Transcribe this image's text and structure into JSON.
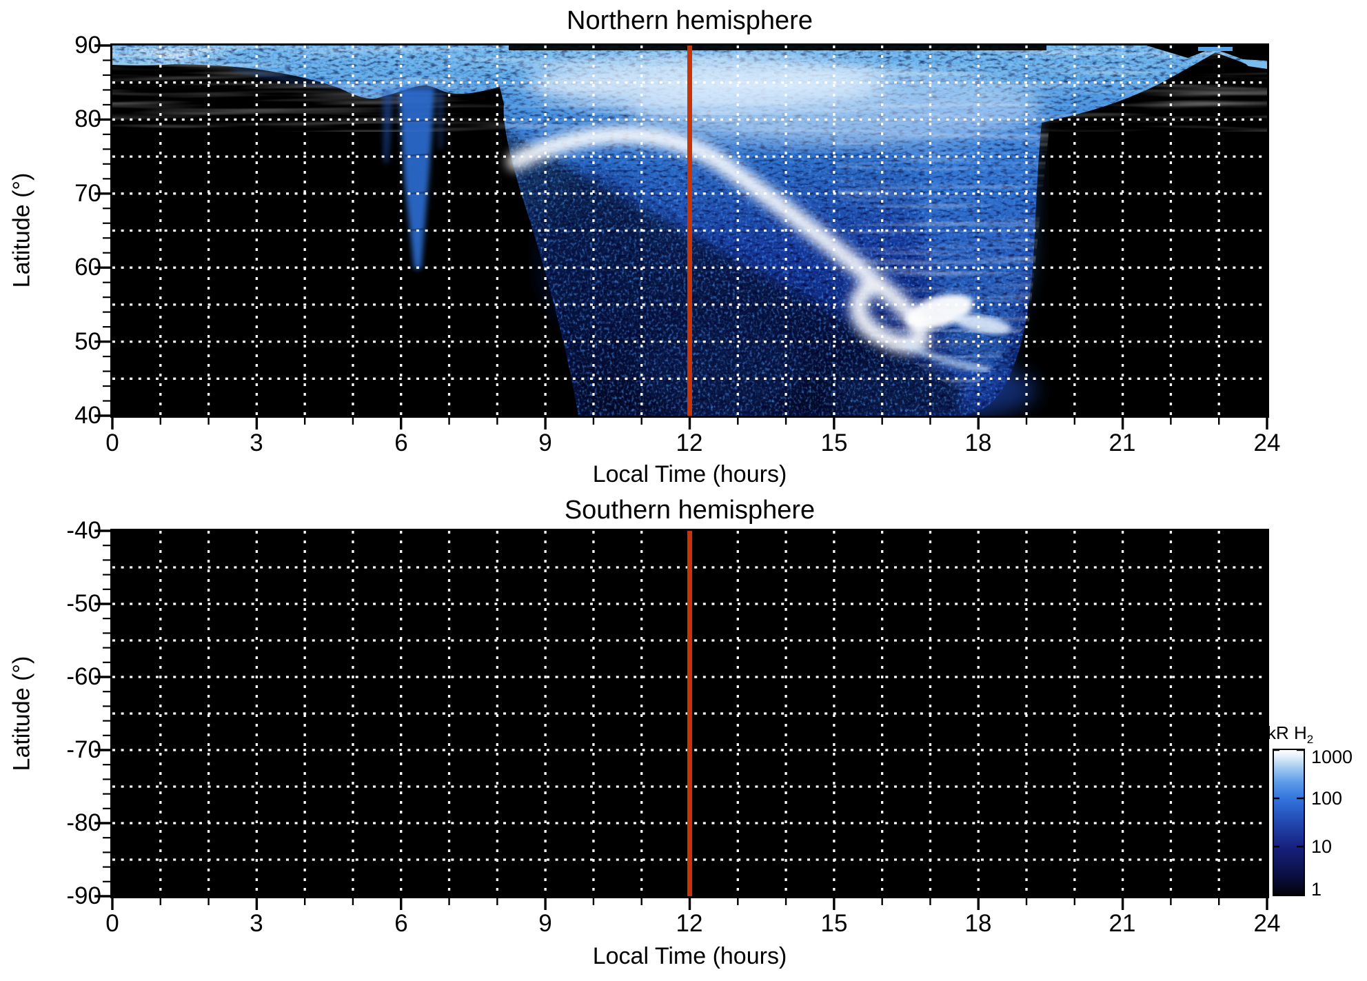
{
  "page": {
    "background": "#ffffff"
  },
  "colors": {
    "plot_background": "#000000",
    "frame": "#000000",
    "grid": "#ffffff",
    "meridian_line": "#c63508",
    "colormap_stops": [
      "#030309",
      "#17217e",
      "#3272dd",
      "#a4ccf2",
      "#ffffff"
    ]
  },
  "meridian": {
    "hour": 12
  },
  "north": {
    "title": "Northern hemisphere",
    "xlabel": "Local Time (hours)",
    "ylabel": "Latitude (°)",
    "x_ticks": [
      "0",
      "3",
      "6",
      "9",
      "12",
      "15",
      "18",
      "21",
      "24"
    ],
    "y_ticks": [
      "90",
      "80",
      "70",
      "60",
      "50",
      "40"
    ]
  },
  "south": {
    "title": "Southern hemisphere",
    "xlabel": "Local Time (hours)",
    "ylabel": "Latitude (°)",
    "x_ticks": [
      "0",
      "3",
      "6",
      "9",
      "12",
      "15",
      "18",
      "21",
      "24"
    ],
    "y_ticks": [
      "-40",
      "-50",
      "-60",
      "-70",
      "-80",
      "-90"
    ]
  },
  "colorbar": {
    "label_main": "kR H",
    "label_sub": "2",
    "tick_labels": [
      "1000",
      "100",
      "10",
      "1"
    ]
  },
  "chart_data": [
    {
      "type": "heatmap",
      "title": "Northern hemisphere",
      "xlabel": "Local Time (hours)",
      "ylabel": "Latitude (°)",
      "xlim": [
        0,
        24
      ],
      "ylim": [
        40,
        90
      ],
      "xticks": [
        0,
        3,
        6,
        9,
        12,
        15,
        18,
        21,
        24
      ],
      "yticks": [
        40,
        50,
        60,
        70,
        80,
        90
      ],
      "grid": "white dotted gridlines every 1 hour and every 5 degrees",
      "colorbar": {
        "label": "kR H2",
        "scale": "log",
        "range": [
          1,
          1000
        ],
        "ticks": [
          1,
          10,
          100,
          1000
        ],
        "colormap": "black -> dark blue -> blue -> light blue -> white"
      },
      "annotations": [
        {
          "type": "vertical-line",
          "x": 12,
          "color": "#c63508",
          "note": "noon meridian line spanning full latitude range"
        }
      ],
      "features": [
        {
          "name": "polar-cap emission band",
          "hours": [
            0,
            24
          ],
          "lat": [
            85,
            90
          ],
          "intensity_kR": [
            100,
            1000
          ],
          "note": "bright streaky band along top, thin 0-2 h and 20-24 h, brightest 10-15 h"
        },
        {
          "name": "dayside emission fan",
          "hours": [
            6.5,
            19.5
          ],
          "lat": [
            50,
            90
          ],
          "intensity_kR": [
            5,
            300
          ],
          "note": "broad blue fan descending from polar band, sharp right edge near 19 h"
        },
        {
          "name": "bright auroral arc / spiral",
          "path_hour_lat": [
            [
              11,
              83
            ],
            [
              13,
              76
            ],
            [
              15,
              66
            ],
            [
              16.3,
              58
            ],
            [
              15.8,
              55.5
            ]
          ],
          "intensity_kR": 1000,
          "note": "white arc sweeping down from noon sector, hooking into a spiral"
        },
        {
          "name": "bright spot with tail",
          "hour": 17.2,
          "lat": 54,
          "intensity_kR": 1000,
          "note": "white blob near 17 h, 54 deg with comet-like tail toward 18 h, 50 deg"
        },
        {
          "name": "dawn streak",
          "hour": 6.5,
          "lat": [
            60,
            90
          ],
          "intensity_kR": [
            10,
            100
          ],
          "note": "narrow vertical streak column reaching lat 60"
        },
        {
          "name": "faint speckle region",
          "hours": [
            8.5,
            19
          ],
          "lat": [
            40,
            70
          ],
          "intensity_kR": [
            1,
            10
          ],
          "note": "noisy dark-blue speckle below the arc, reaching bottom of plot"
        },
        {
          "name": "background",
          "intensity_kR": 0,
          "color": "black"
        }
      ]
    },
    {
      "type": "heatmap",
      "title": "Southern hemisphere",
      "xlabel": "Local Time (hours)",
      "ylabel": "Latitude (°)",
      "xlim": [
        0,
        24
      ],
      "ylim": [
        -90,
        -40
      ],
      "xticks": [
        0,
        3,
        6,
        9,
        12,
        15,
        18,
        21,
        24
      ],
      "yticks": [
        -90,
        -80,
        -70,
        -60,
        -50,
        -40
      ],
      "grid": "white dotted gridlines every 1 hour and every 5 degrees",
      "annotations": [
        {
          "type": "vertical-line",
          "x": 12,
          "color": "#c63508"
        }
      ],
      "features": [
        {
          "name": "no emission / uniform background",
          "intensity_kR": 0,
          "color": "black",
          "note": "entire panel is black"
        }
      ]
    }
  ]
}
